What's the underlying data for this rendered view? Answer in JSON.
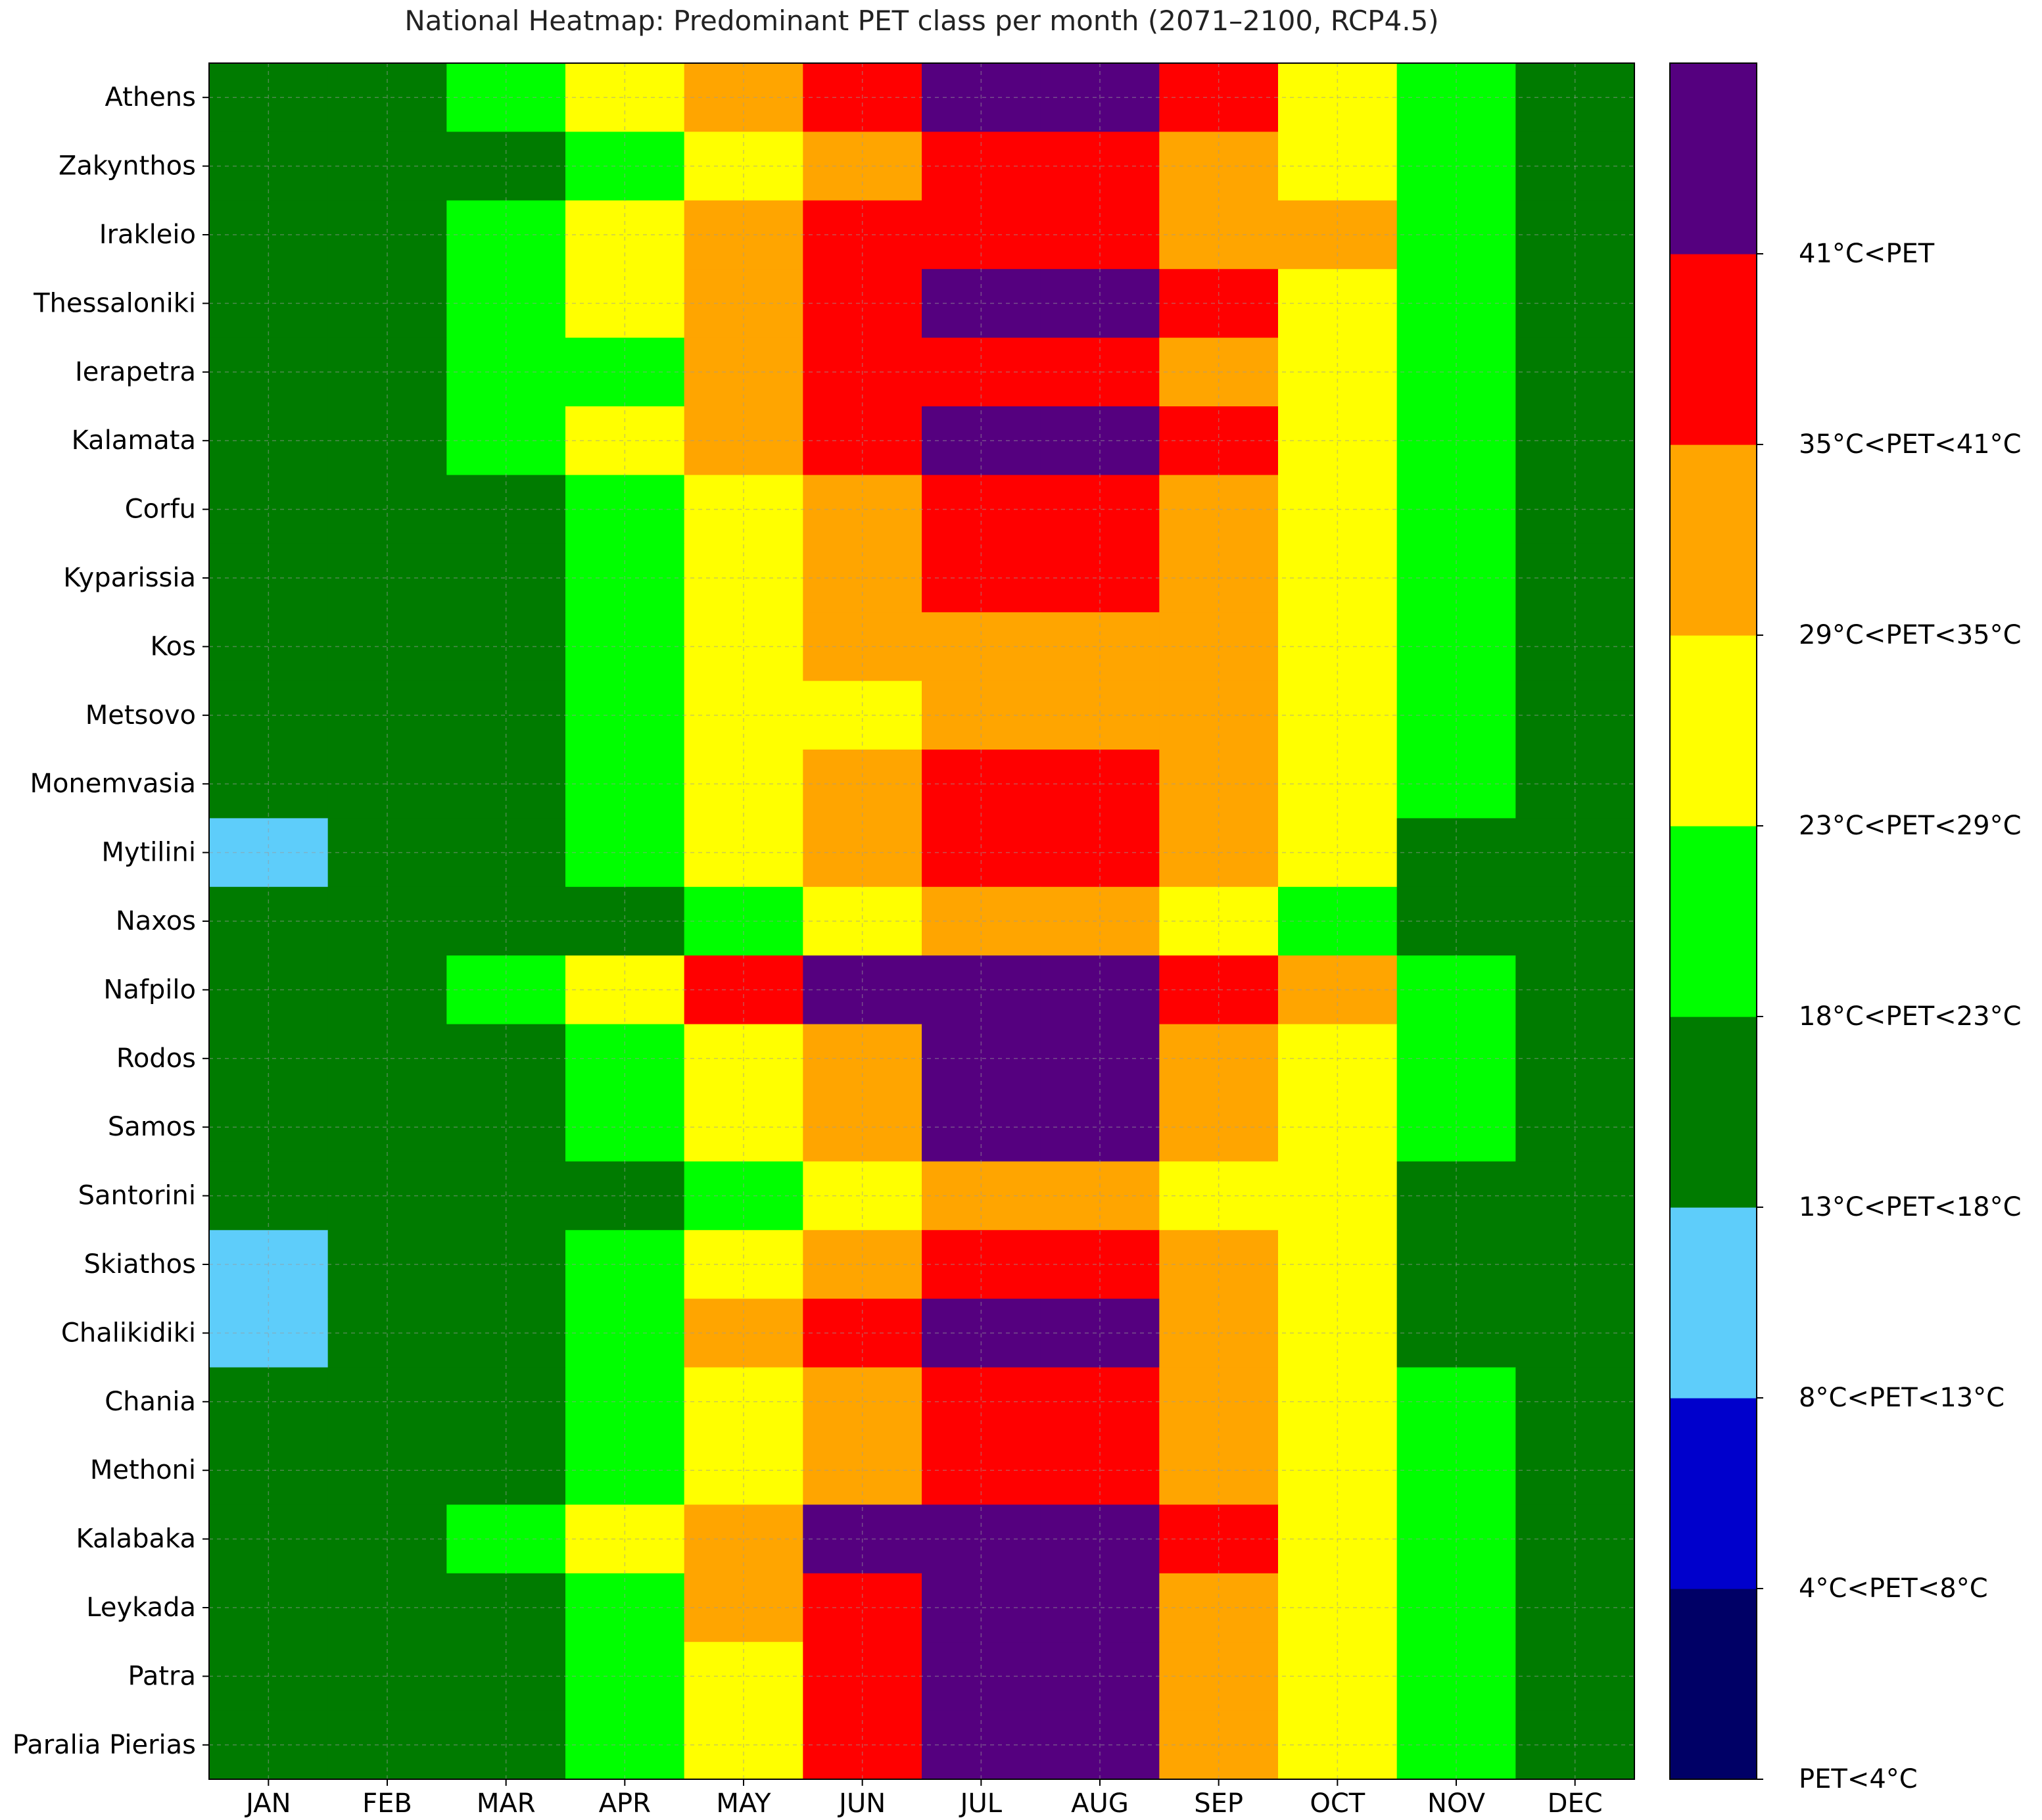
{
  "chart_data": {
    "type": "heatmap",
    "title": "National Heatmap: Predominant PET class per month (2071–2100, RCP4.5)",
    "xlabel": "",
    "ylabel": "",
    "grid": true,
    "legend": "colorbar-right",
    "x": [
      "JAN",
      "FEB",
      "MAR",
      "APR",
      "MAY",
      "JUN",
      "JUL",
      "AUG",
      "SEP",
      "OCT",
      "NOV",
      "DEC"
    ],
    "y": [
      "Athens",
      "Zakynthos",
      "Irakleio",
      "Thessaloniki",
      "Ierapetra",
      "Kalamata",
      "Corfu",
      "Kyparissia",
      "Kos",
      "Metsovo",
      "Monemvasia",
      "Mytilini",
      "Naxos",
      "Nafpilo",
      "Rodos",
      "Samos",
      "Santorini",
      "Skiathos",
      "Chalikidiki",
      "Chania",
      "Methoni",
      "Kalabaka",
      "Leykada",
      "Patra",
      "Paralia Pierias"
    ],
    "classes": [
      {
        "label": "PET<4°C",
        "color": "#000066"
      },
      {
        "label": "4°C<PET<8°C",
        "color": "#0000cc"
      },
      {
        "label": "8°C<PET<13°C",
        "color": "#5ecdfa"
      },
      {
        "label": "13°C<PET<18°C",
        "color": "#007b00"
      },
      {
        "label": "18°C<PET<23°C",
        "color": "#00ff00"
      },
      {
        "label": "23°C<PET<29°C",
        "color": "#ffff00"
      },
      {
        "label": "29°C<PET<35°C",
        "color": "#ffa500"
      },
      {
        "label": "35°C<PET<41°C",
        "color": "#ff0000"
      },
      {
        "label": "41°C<PET",
        "color": "#55007f"
      }
    ],
    "values": [
      [
        3,
        3,
        4,
        5,
        6,
        7,
        8,
        8,
        7,
        5,
        4,
        3
      ],
      [
        3,
        3,
        3,
        4,
        5,
        6,
        7,
        7,
        6,
        5,
        4,
        3
      ],
      [
        3,
        3,
        4,
        5,
        6,
        7,
        7,
        7,
        6,
        6,
        4,
        3
      ],
      [
        3,
        3,
        4,
        5,
        6,
        7,
        8,
        8,
        7,
        5,
        4,
        3
      ],
      [
        3,
        3,
        4,
        4,
        6,
        7,
        7,
        7,
        6,
        5,
        4,
        3
      ],
      [
        3,
        3,
        4,
        5,
        6,
        7,
        8,
        8,
        7,
        5,
        4,
        3
      ],
      [
        3,
        3,
        3,
        4,
        5,
        6,
        7,
        7,
        6,
        5,
        4,
        3
      ],
      [
        3,
        3,
        3,
        4,
        5,
        6,
        7,
        7,
        6,
        5,
        4,
        3
      ],
      [
        3,
        3,
        3,
        4,
        5,
        6,
        6,
        6,
        6,
        5,
        4,
        3
      ],
      [
        3,
        3,
        3,
        4,
        5,
        5,
        6,
        6,
        6,
        5,
        4,
        3
      ],
      [
        3,
        3,
        3,
        4,
        5,
        6,
        7,
        7,
        6,
        5,
        4,
        3
      ],
      [
        2,
        3,
        3,
        4,
        5,
        6,
        7,
        7,
        6,
        5,
        3,
        3
      ],
      [
        3,
        3,
        3,
        3,
        4,
        5,
        6,
        6,
        5,
        4,
        3,
        3
      ],
      [
        3,
        3,
        4,
        5,
        7,
        8,
        8,
        8,
        7,
        6,
        4,
        3
      ],
      [
        3,
        3,
        3,
        4,
        5,
        6,
        8,
        8,
        6,
        5,
        4,
        3
      ],
      [
        3,
        3,
        3,
        4,
        5,
        6,
        8,
        8,
        6,
        5,
        4,
        3
      ],
      [
        3,
        3,
        3,
        3,
        4,
        5,
        6,
        6,
        5,
        5,
        3,
        3
      ],
      [
        2,
        3,
        3,
        4,
        5,
        6,
        7,
        7,
        6,
        5,
        3,
        3
      ],
      [
        2,
        3,
        3,
        4,
        6,
        7,
        8,
        8,
        6,
        5,
        3,
        3
      ],
      [
        3,
        3,
        3,
        4,
        5,
        6,
        7,
        7,
        6,
        5,
        4,
        3
      ],
      [
        3,
        3,
        3,
        4,
        5,
        6,
        7,
        7,
        6,
        5,
        4,
        3
      ],
      [
        3,
        3,
        4,
        5,
        6,
        8,
        8,
        8,
        7,
        5,
        4,
        3
      ],
      [
        3,
        3,
        3,
        4,
        6,
        7,
        8,
        8,
        6,
        5,
        4,
        3
      ],
      [
        3,
        3,
        3,
        4,
        5,
        7,
        8,
        8,
        6,
        5,
        4,
        3
      ],
      [
        3,
        3,
        3,
        4,
        5,
        7,
        8,
        8,
        6,
        5,
        4,
        3
      ]
    ]
  }
}
